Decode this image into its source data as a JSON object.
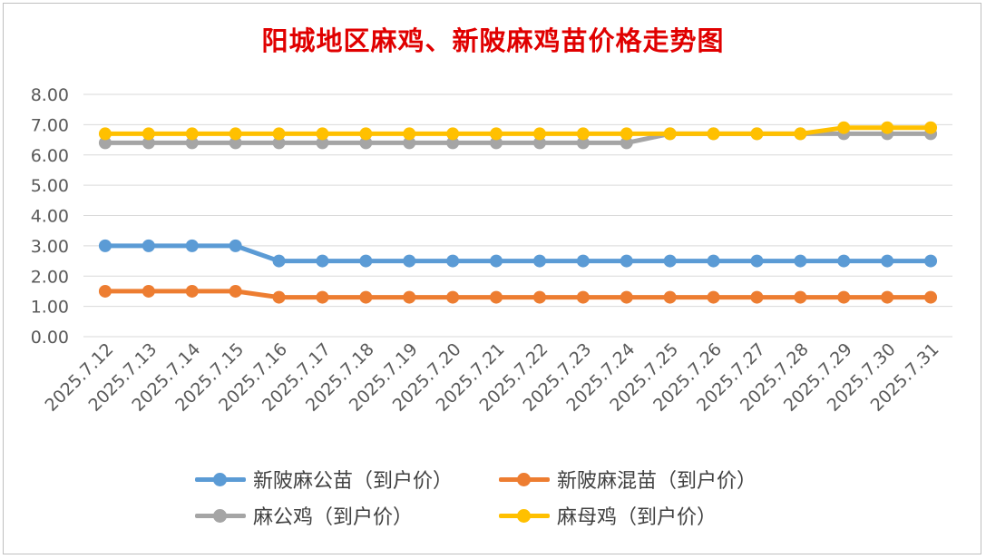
{
  "chart_data": {
    "type": "line",
    "title": "阳城地区麻鸡、新陂麻鸡苗价格走势图",
    "categories": [
      "2025.7.12",
      "2025.7.13",
      "2025.7.14",
      "2025.7.15",
      "2025.7.16",
      "2025.7.17",
      "2025.7.18",
      "2025.7.19",
      "2025.7.20",
      "2025.7.21",
      "2025.7.22",
      "2025.7.23",
      "2025.7.24",
      "2025.7.25",
      "2025.7.26",
      "2025.7.27",
      "2025.7.28",
      "2025.7.29",
      "2025.7.30",
      "2025.7.31"
    ],
    "ylim": [
      0,
      8
    ],
    "yticks": [
      "0.00",
      "1.00",
      "2.00",
      "3.00",
      "4.00",
      "5.00",
      "6.00",
      "7.00",
      "8.00"
    ],
    "grid": true,
    "legend_position": "bottom",
    "series": [
      {
        "name": "新陂麻公苗（到户价）",
        "color": "#5b9bd5",
        "markers": true,
        "values": [
          3.0,
          3.0,
          3.0,
          3.0,
          2.5,
          2.5,
          2.5,
          2.5,
          2.5,
          2.5,
          2.5,
          2.5,
          2.5,
          2.5,
          2.5,
          2.5,
          2.5,
          2.5,
          2.5,
          2.5
        ]
      },
      {
        "name": "新陂麻混苗（到户价）",
        "color": "#ed7d31",
        "markers": true,
        "values": [
          1.5,
          1.5,
          1.5,
          1.5,
          1.3,
          1.3,
          1.3,
          1.3,
          1.3,
          1.3,
          1.3,
          1.3,
          1.3,
          1.3,
          1.3,
          1.3,
          1.3,
          1.3,
          1.3,
          1.3
        ]
      },
      {
        "name": "麻公鸡（到户价）",
        "color": "#a5a5a5",
        "markers": true,
        "values": [
          6.4,
          6.4,
          6.4,
          6.4,
          6.4,
          6.4,
          6.4,
          6.4,
          6.4,
          6.4,
          6.4,
          6.4,
          6.4,
          6.7,
          6.7,
          6.7,
          6.7,
          6.7,
          6.7,
          6.7
        ]
      },
      {
        "name": "麻母鸡（到户价）",
        "color": "#ffc000",
        "markers": true,
        "values": [
          6.7,
          6.7,
          6.7,
          6.7,
          6.7,
          6.7,
          6.7,
          6.7,
          6.7,
          6.7,
          6.7,
          6.7,
          6.7,
          6.7,
          6.7,
          6.7,
          6.7,
          6.9,
          6.9,
          6.9
        ]
      }
    ]
  }
}
